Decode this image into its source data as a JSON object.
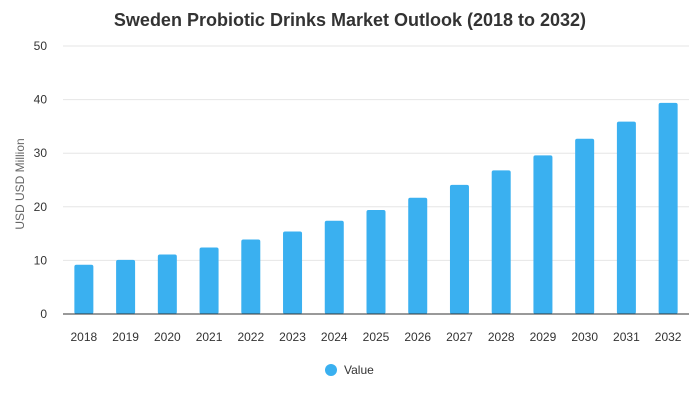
{
  "chart_data": {
    "type": "bar",
    "title": "Sweden Probiotic Drinks Market Outlook (2018 to 2032)",
    "xlabel": "",
    "ylabel": "USD USD Million",
    "categories": [
      "2018",
      "2019",
      "2020",
      "2021",
      "2022",
      "2023",
      "2024",
      "2025",
      "2026",
      "2027",
      "2028",
      "2029",
      "2030",
      "2031",
      "2032"
    ],
    "series": [
      {
        "name": "Value",
        "color": "#3ab0f0",
        "values": [
          9.2,
          10.1,
          11.1,
          12.4,
          13.9,
          15.4,
          17.4,
          19.4,
          21.7,
          24.1,
          26.8,
          29.6,
          32.7,
          35.9,
          39.4
        ]
      }
    ],
    "ylim": [
      0,
      50
    ],
    "yticks": [
      "0",
      "10",
      "20",
      "30",
      "40",
      "50"
    ],
    "grid": true,
    "legend_position": "bottom"
  }
}
